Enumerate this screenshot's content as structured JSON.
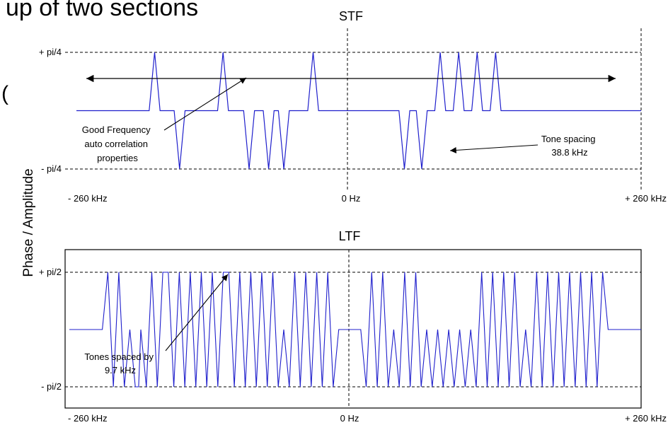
{
  "header_fragment": "up of two sections",
  "margin_fragment": "(",
  "ylabel": "Phase / Amplitude",
  "colors": {
    "signal": "#1f1fcc",
    "axes": "#000000",
    "grid": "#000000"
  },
  "chart_data": [
    {
      "type": "line",
      "title": "STF",
      "x_ticks": [
        "- 260 kHz",
        "0 Hz",
        "+ 260 kHz"
      ],
      "y_ticks": [
        "+ pi/4",
        "- pi/4"
      ],
      "xlim": [
        -260,
        260
      ],
      "ylim": [
        -1,
        1
      ],
      "grid": "dashed",
      "series": [
        {
          "values": [
            [
              -260,
              0
            ],
            [
              -193,
              0
            ],
            [
              -188,
              1
            ],
            [
              -183,
              0
            ],
            [
              -170,
              0
            ],
            [
              -165,
              -1
            ],
            [
              -160,
              0
            ],
            [
              -130,
              0
            ],
            [
              -125,
              1
            ],
            [
              -120,
              0
            ],
            [
              -106,
              0
            ],
            [
              -101,
              -1
            ],
            [
              -96,
              0
            ],
            [
              -88,
              0
            ],
            [
              -83,
              -1
            ],
            [
              -78,
              0
            ],
            [
              -74,
              0
            ],
            [
              -69,
              -1
            ],
            [
              -64,
              0
            ],
            [
              -47,
              0
            ],
            [
              -42,
              1
            ],
            [
              -37,
              0
            ],
            [
              37,
              0
            ],
            [
              42,
              -1
            ],
            [
              47,
              0
            ],
            [
              53,
              0
            ],
            [
              58,
              -1
            ],
            [
              63,
              0
            ],
            [
              70,
              0
            ],
            [
              75,
              1
            ],
            [
              80,
              0
            ],
            [
              87,
              0
            ],
            [
              92,
              1
            ],
            [
              97,
              0
            ],
            [
              104,
              0
            ],
            [
              109,
              1
            ],
            [
              114,
              0
            ],
            [
              121,
              0
            ],
            [
              126,
              1
            ],
            [
              131,
              0
            ],
            [
              260,
              0
            ]
          ]
        }
      ],
      "annotations": [
        {
          "text_lines": [
            "Good Frequency",
            "auto correlation",
            "properties"
          ]
        },
        {
          "text_lines": [
            "Tone spacing",
            "38.8 kHz"
          ]
        }
      ]
    },
    {
      "type": "line",
      "title": "LTF",
      "x_ticks": [
        "- 260 kHz",
        "0 Hz",
        "+ 260 kHz"
      ],
      "y_ticks": [
        "+ pi/2",
        "- pi/2"
      ],
      "xlim": [
        -260,
        260
      ],
      "ylim": [
        -1,
        1
      ],
      "grid": "dashed",
      "series": [
        {
          "values": [
            [
              -260,
              0
            ],
            [
              -230,
              0
            ],
            [
              -225,
              1
            ],
            [
              -220,
              -1
            ],
            [
              -215,
              1
            ],
            [
              -210,
              -1
            ],
            [
              -205,
              0
            ],
            [
              -200,
              -1
            ],
            [
              -197,
              -1
            ],
            [
              -195,
              0
            ],
            [
              -190,
              -1
            ],
            [
              -185,
              1
            ],
            [
              -180,
              -1
            ],
            [
              -175,
              1
            ],
            [
              -170,
              1
            ],
            [
              -165,
              -1
            ],
            [
              -160,
              1
            ],
            [
              -155,
              -1
            ],
            [
              -150,
              1
            ],
            [
              -145,
              -1
            ],
            [
              -140,
              1
            ],
            [
              -135,
              -1
            ],
            [
              -130,
              1
            ],
            [
              -125,
              -1
            ],
            [
              -120,
              1
            ],
            [
              -115,
              1
            ],
            [
              -110,
              -1
            ],
            [
              -105,
              1
            ],
            [
              -100,
              -1
            ],
            [
              -95,
              1
            ],
            [
              -90,
              -1
            ],
            [
              -85,
              1
            ],
            [
              -80,
              -1
            ],
            [
              -75,
              1
            ],
            [
              -70,
              -1
            ],
            [
              -65,
              0
            ],
            [
              -60,
              -1
            ],
            [
              -55,
              1
            ],
            [
              -50,
              -1
            ],
            [
              -45,
              1
            ],
            [
              -40,
              -1
            ],
            [
              -35,
              1
            ],
            [
              -30,
              -1
            ],
            [
              -25,
              1
            ],
            [
              -20,
              -1
            ],
            [
              -15,
              0
            ],
            [
              -10,
              0
            ],
            [
              -5,
              0
            ],
            [
              5,
              0
            ],
            [
              10,
              -1
            ],
            [
              15,
              1
            ],
            [
              20,
              -1
            ],
            [
              25,
              1
            ],
            [
              30,
              -1
            ],
            [
              35,
              0
            ],
            [
              40,
              -1
            ],
            [
              45,
              1
            ],
            [
              50,
              -1
            ],
            [
              55,
              1
            ],
            [
              60,
              -1
            ],
            [
              65,
              0
            ],
            [
              70,
              -1
            ],
            [
              75,
              0
            ],
            [
              80,
              -1
            ],
            [
              85,
              0
            ],
            [
              90,
              -1
            ],
            [
              95,
              0
            ],
            [
              100,
              -1
            ],
            [
              105,
              0
            ],
            [
              110,
              -1
            ],
            [
              115,
              1
            ],
            [
              120,
              -1
            ],
            [
              125,
              1
            ],
            [
              130,
              -1
            ],
            [
              135,
              1
            ],
            [
              140,
              -1
            ],
            [
              145,
              1
            ],
            [
              150,
              -1
            ],
            [
              155,
              0
            ],
            [
              160,
              -1
            ],
            [
              165,
              1
            ],
            [
              170,
              -1
            ],
            [
              175,
              1
            ],
            [
              180,
              -1
            ],
            [
              185,
              1
            ],
            [
              190,
              -1
            ],
            [
              195,
              1
            ],
            [
              200,
              -1
            ],
            [
              205,
              1
            ],
            [
              210,
              -1
            ],
            [
              215,
              1
            ],
            [
              220,
              -1
            ],
            [
              225,
              1
            ],
            [
              230,
              0
            ],
            [
              260,
              0
            ]
          ]
        }
      ],
      "annotations": [
        {
          "text_lines": [
            "Tones spaced by",
            "9.7 kHz"
          ]
        }
      ]
    }
  ]
}
